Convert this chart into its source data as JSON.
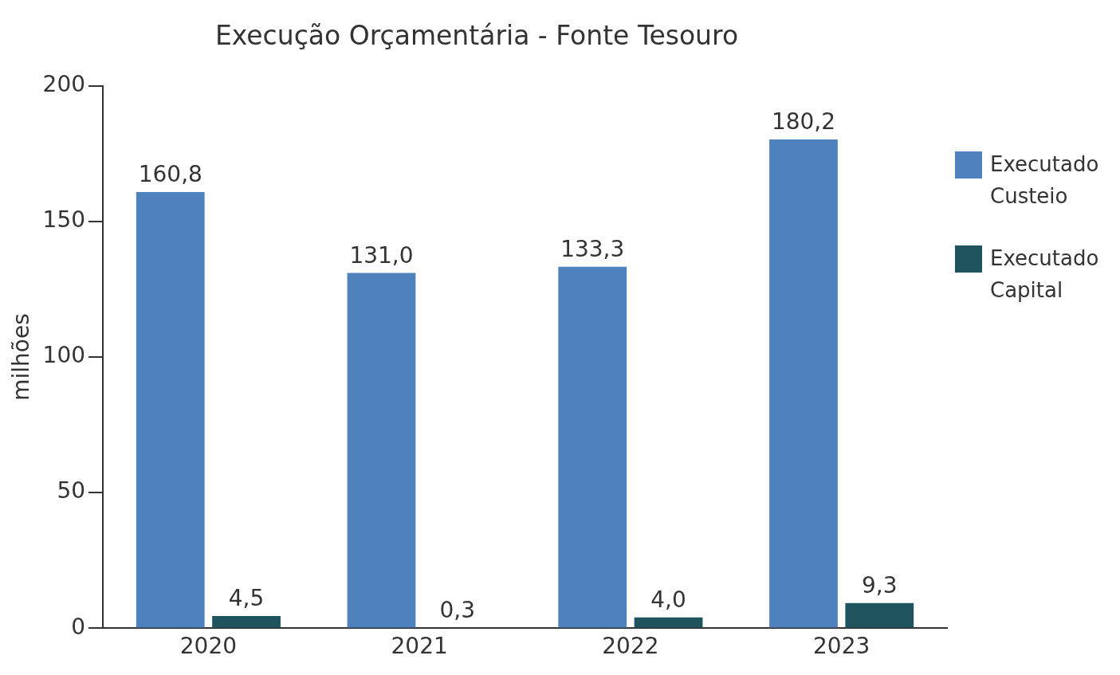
{
  "chart_data": {
    "type": "bar",
    "title": "Execução Orçamentária - Fonte Tesouro",
    "ylabel": "milhões",
    "categories": [
      "2020",
      "2021",
      "2022",
      "2023"
    ],
    "series": [
      {
        "name": "Executado Custeio",
        "color": "#4f81bd",
        "values": [
          160.8,
          131.0,
          133.3,
          180.2
        ],
        "value_labels": [
          "160,8",
          "131,0",
          "133,3",
          "180,2"
        ]
      },
      {
        "name": "Executado Capital",
        "color": "#1f535e",
        "values": [
          4.5,
          0.3,
          4.0,
          9.3
        ],
        "value_labels": [
          "4,5",
          "0,3",
          "4,0",
          "9,3"
        ]
      }
    ],
    "ylim": [
      0,
      200
    ],
    "yticks": [
      0,
      50,
      100,
      150,
      200
    ],
    "grid": false,
    "legend": "right"
  }
}
